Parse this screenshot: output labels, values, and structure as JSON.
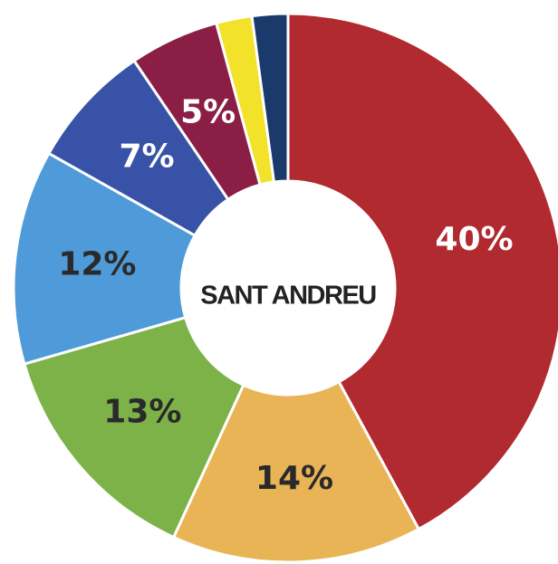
{
  "chart_data": {
    "type": "donut",
    "title": "SANT ANDREU",
    "values": [
      40,
      14,
      13,
      12,
      7,
      5,
      2,
      2
    ],
    "value_labels": [
      "40%",
      "14%",
      "13%",
      "12%",
      "7%",
      "5%",
      null,
      null
    ],
    "colors": [
      "#b02a30",
      "#e8b455",
      "#7db249",
      "#4f9ad8",
      "#3752a6",
      "#8b1e45",
      "#f2e229",
      "#1a3a6b"
    ],
    "label_colors": [
      "#ffffff",
      "#2a2a2a",
      "#2a2a2a",
      "#2a2a2a",
      "#ffffff",
      "#ffffff",
      "#2a2a2a",
      "#ffffff"
    ]
  }
}
